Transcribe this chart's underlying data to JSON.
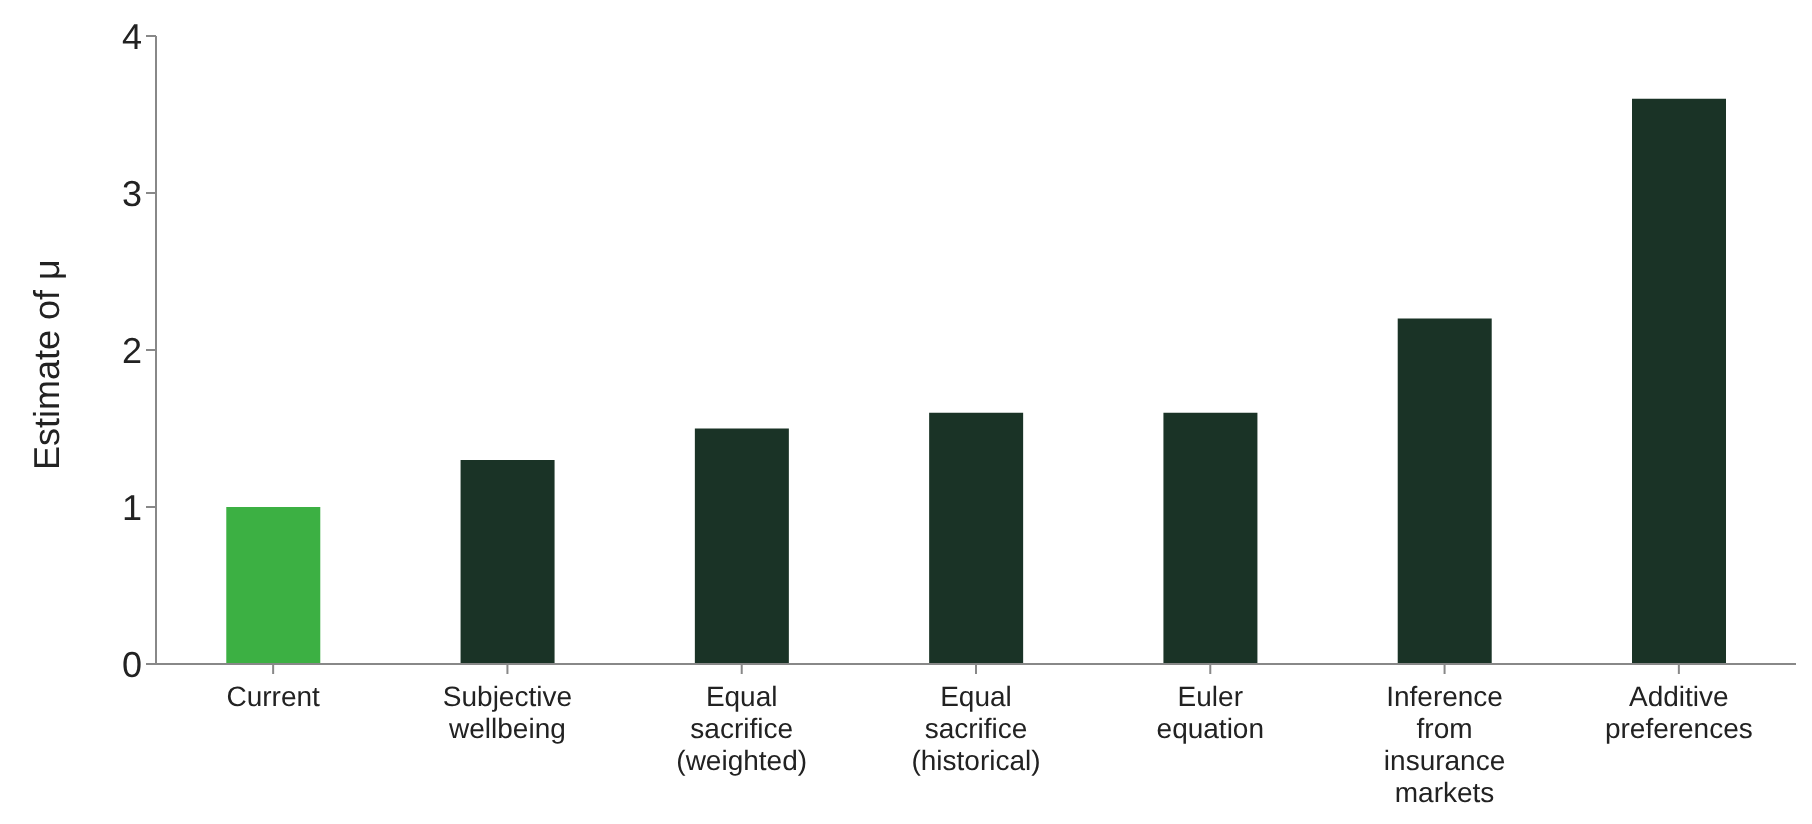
{
  "chart_data": {
    "type": "bar",
    "ylabel": "Estimate of μ",
    "categories": [
      "Current",
      "Subjective wellbeing",
      "Equal sacrifice (weighted)",
      "Equal sacrifice (historical)",
      "Euler equation",
      "Inference from insurance markets",
      "Additive preferences"
    ],
    "values": [
      1.0,
      1.3,
      1.5,
      1.6,
      1.6,
      2.2,
      3.6
    ],
    "colors": [
      "#3cb043",
      "#1a3326",
      "#1a3326",
      "#1a3326",
      "#1a3326",
      "#1a3326",
      "#1a3326"
    ],
    "ylim": [
      0,
      4
    ],
    "yticks": [
      0,
      1,
      2,
      3,
      4
    ],
    "grid": false,
    "legend": false
  }
}
